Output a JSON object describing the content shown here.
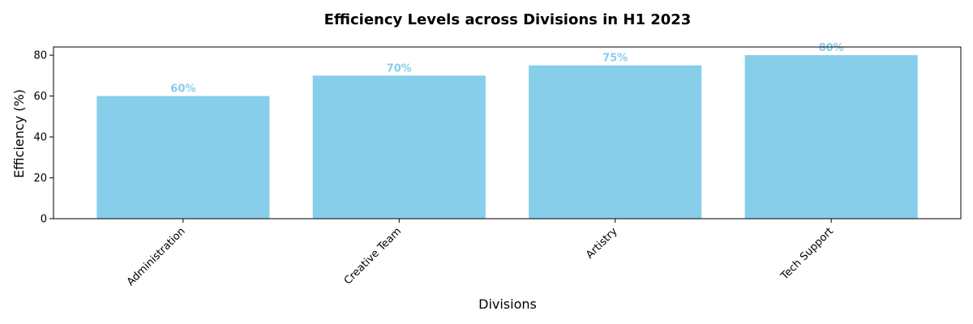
{
  "chart_data": {
    "type": "bar",
    "title": "Efficiency Levels across Divisions in H1 2023",
    "xlabel": "Divisions",
    "ylabel": "Efficiency (%)",
    "categories": [
      "Administration",
      "Creative Team",
      "Artistry",
      "Tech Support"
    ],
    "values": [
      60,
      70,
      75,
      80
    ],
    "data_labels": [
      "60%",
      "70%",
      "75%",
      "80%"
    ],
    "yticks": [
      0,
      20,
      40,
      60,
      80
    ],
    "ylim": [
      0,
      84
    ],
    "grid": false,
    "legend": "none",
    "bar_color": "#87CEEB",
    "label_color": "#87CEEB"
  }
}
